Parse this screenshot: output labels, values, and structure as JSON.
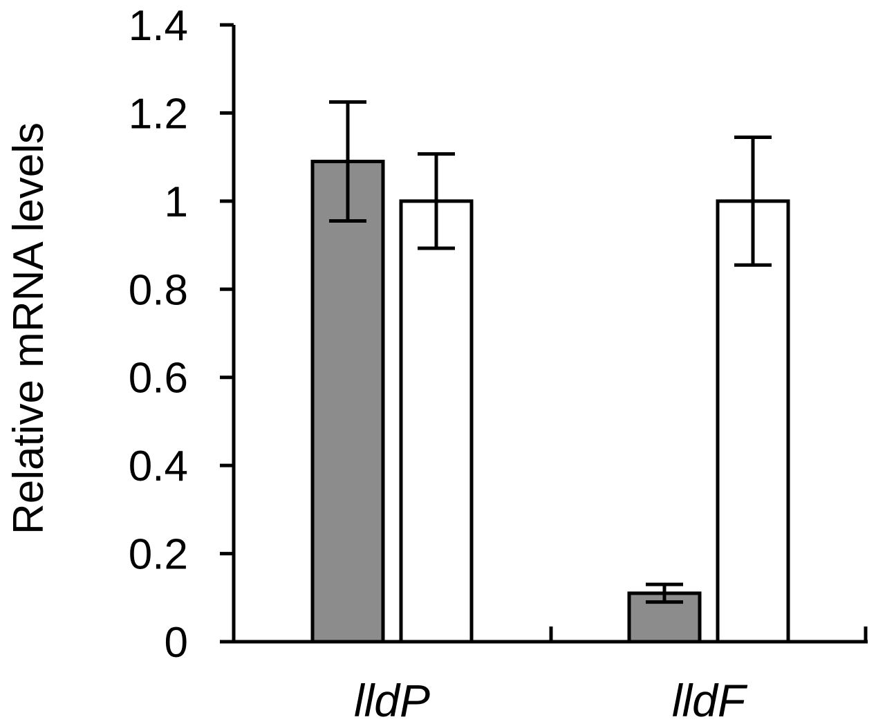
{
  "chart_data": {
    "type": "bar",
    "categories": [
      "lldP",
      "lldF"
    ],
    "series": [
      {
        "values": [
          1.09,
          0.11
        ],
        "errors": [
          0.135,
          0.02
        ],
        "color": "#8c8c8c"
      },
      {
        "values": [
          1.0,
          1.0
        ],
        "errors": [
          0.107,
          0.145
        ],
        "color": "#ffffff"
      }
    ],
    "title": "",
    "xlabel": "",
    "ylabel": "Relative mRNA levels",
    "ylim": [
      0,
      1.4
    ],
    "yticks": [
      0,
      0.2,
      0.4,
      0.6,
      0.8,
      1,
      1.2,
      1.4
    ],
    "ytick_labels": [
      "0",
      "0.2",
      "0.4",
      "0.6",
      "0.8",
      "1",
      "1.2",
      "1.4"
    ],
    "grid": false,
    "legend": "none"
  }
}
